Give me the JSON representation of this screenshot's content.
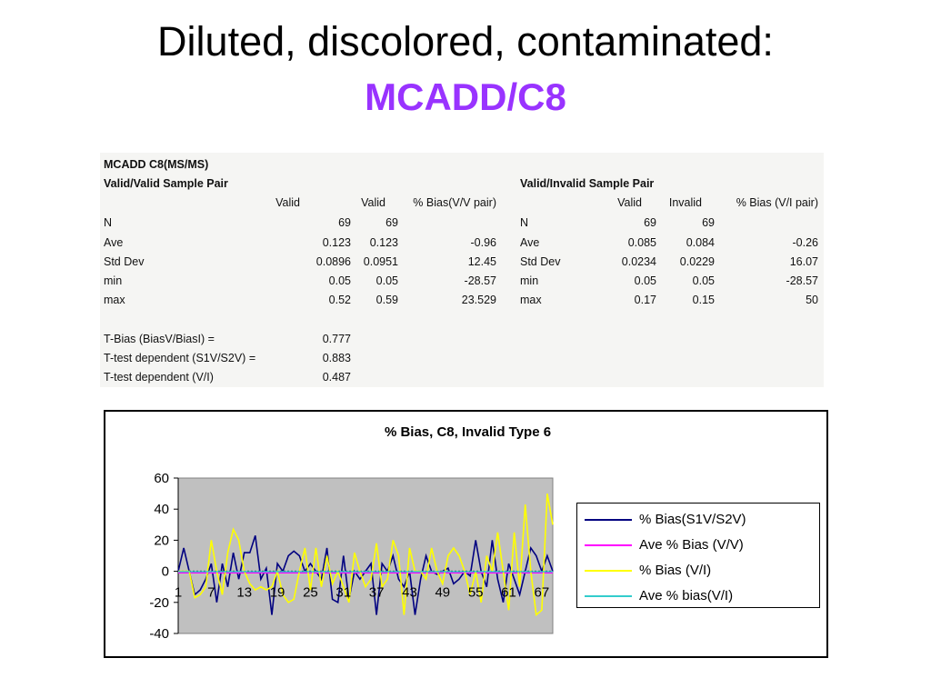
{
  "slide": {
    "title": "Diluted, discolored, contaminated:",
    "subtitle": "MCADD/C8"
  },
  "stats": {
    "heading1": "MCADD C8(MS/MS)",
    "heading2": "Valid/Valid Sample Pair",
    "vv": {
      "headers": [
        "Valid",
        "Valid",
        "% Bias(V/V pair)"
      ],
      "rows": [
        {
          "label": "N",
          "a": "69",
          "b": "69",
          "c": ""
        },
        {
          "label": "Ave",
          "a": "0.123",
          "b": "0.123",
          "c": "-0.96"
        },
        {
          "label": "Std Dev",
          "a": "0.0896",
          "b": "0.0951",
          "c": "12.45"
        },
        {
          "label": "min",
          "a": "0.05",
          "b": "0.05",
          "c": "-28.57"
        },
        {
          "label": "max",
          "a": "0.52",
          "b": "0.59",
          "c": "23.529"
        }
      ]
    },
    "tests": [
      {
        "label": "T-Bias (BiasV/BiasI) =",
        "value": "0.777"
      },
      {
        "label": "T-test dependent (S1V/S2V) =",
        "value": "0.883"
      },
      {
        "label": "T-test dependent (V/I)",
        "value": "0.487"
      }
    ],
    "vi": {
      "heading": "Valid/Invalid Sample Pair",
      "headers": [
        "Valid",
        "Invalid",
        "% Bias (V/I pair)"
      ],
      "rows": [
        {
          "label": "N",
          "a": "69",
          "b": "69",
          "c": ""
        },
        {
          "label": "Ave",
          "a": "0.085",
          "b": "0.084",
          "c": "-0.26"
        },
        {
          "label": "Std Dev",
          "a": "0.0234",
          "b": "0.0229",
          "c": "16.07"
        },
        {
          "label": "min",
          "a": "0.05",
          "b": "0.05",
          "c": "-28.57"
        },
        {
          "label": "max",
          "a": "0.17",
          "b": "0.15",
          "c": "50"
        }
      ]
    }
  },
  "chart_data": {
    "type": "line",
    "title": "% Bias, C8, Invalid Type 6",
    "xlabel": "",
    "ylabel": "",
    "ylim": [
      -40,
      60
    ],
    "yticks": [
      -40,
      -20,
      0,
      20,
      40,
      60
    ],
    "xticks": [
      1,
      7,
      13,
      19,
      25,
      31,
      37,
      43,
      49,
      55,
      61,
      67
    ],
    "x": [
      1,
      2,
      3,
      4,
      5,
      6,
      7,
      8,
      9,
      10,
      11,
      12,
      13,
      14,
      15,
      16,
      17,
      18,
      19,
      20,
      21,
      22,
      23,
      24,
      25,
      26,
      27,
      28,
      29,
      30,
      31,
      32,
      33,
      34,
      35,
      36,
      37,
      38,
      39,
      40,
      41,
      42,
      43,
      44,
      45,
      46,
      47,
      48,
      49,
      50,
      51,
      52,
      53,
      54,
      55,
      56,
      57,
      58,
      59,
      60,
      61,
      62,
      63,
      64,
      65,
      66,
      67,
      68,
      69
    ],
    "grid": false,
    "plot_background": "#c0c0c0",
    "legend_position": "right",
    "series": [
      {
        "name": "% Bias(S1V/S2V)",
        "color": "#000080",
        "values": [
          0,
          15,
          0,
          -15,
          -12,
          -5,
          5,
          -20,
          5,
          -10,
          12,
          -5,
          12,
          12,
          23,
          -5,
          2,
          -28,
          5,
          0,
          10,
          13,
          10,
          0,
          5,
          0,
          -5,
          15,
          -18,
          -20,
          10,
          -18,
          0,
          -5,
          0,
          5,
          -28,
          5,
          0,
          10,
          -5,
          -10,
          0,
          -28,
          -5,
          10,
          0,
          -2,
          0,
          2,
          -8,
          -5,
          0,
          -3,
          20,
          0,
          -10,
          20,
          -5,
          -20,
          5,
          -5,
          -15,
          0,
          15,
          10,
          0,
          10,
          0
        ]
      },
      {
        "name": "Ave % Bias (V/V)",
        "color": "#ff00ff",
        "values": [
          -0.96,
          -0.96,
          -0.96,
          -0.96,
          -0.96,
          -0.96,
          -0.96,
          -0.96,
          -0.96,
          -0.96,
          -0.96,
          -0.96,
          -0.96,
          -0.96,
          -0.96,
          -0.96,
          -0.96,
          -0.96,
          -0.96,
          -0.96,
          -0.96,
          -0.96,
          -0.96,
          -0.96,
          -0.96,
          -0.96,
          -0.96,
          -0.96,
          -0.96,
          -0.96,
          -0.96,
          -0.96,
          -0.96,
          -0.96,
          -0.96,
          -0.96,
          -0.96,
          -0.96,
          -0.96,
          -0.96,
          -0.96,
          -0.96,
          -0.96,
          -0.96,
          -0.96,
          -0.96,
          -0.96,
          -0.96,
          -0.96,
          -0.96,
          -0.96,
          -0.96,
          -0.96,
          -0.96,
          -0.96,
          -0.96,
          -0.96,
          -0.96,
          -0.96,
          -0.96,
          -0.96,
          -0.96,
          -0.96,
          -0.96,
          -0.96,
          -0.96,
          -0.96,
          -0.96,
          -0.96
        ]
      },
      {
        "name": "% Bias (V/I)",
        "color": "#ffff00",
        "values": [
          0,
          0,
          0,
          -17,
          -15,
          -10,
          20,
          0,
          -15,
          12,
          27,
          20,
          0,
          -8,
          -12,
          -10,
          -12,
          -10,
          0,
          -15,
          -20,
          -18,
          0,
          15,
          -12,
          15,
          -10,
          10,
          -8,
          0,
          -10,
          -20,
          12,
          0,
          -10,
          -5,
          18,
          -10,
          -5,
          20,
          10,
          -28,
          15,
          0,
          0,
          -5,
          15,
          0,
          -8,
          10,
          15,
          10,
          0,
          -15,
          0,
          -20,
          10,
          0,
          25,
          0,
          -25,
          25,
          -10,
          43,
          0,
          -28,
          -25,
          50,
          30
        ]
      },
      {
        "name": "Ave % bias(V/I)",
        "color": "#33cccc",
        "values": [
          -0.26,
          -0.26,
          -0.26,
          -0.26,
          -0.26,
          -0.26,
          -0.26,
          -0.26,
          -0.26,
          -0.26,
          -0.26,
          -0.26,
          -0.26,
          -0.26,
          -0.26,
          -0.26,
          -0.26,
          -0.26,
          -0.26,
          -0.26,
          -0.26,
          -0.26,
          -0.26,
          -0.26,
          -0.26,
          -0.26,
          -0.26,
          -0.26,
          -0.26,
          -0.26,
          -0.26,
          -0.26,
          -0.26,
          -0.26,
          -0.26,
          -0.26,
          -0.26,
          -0.26,
          -0.26,
          -0.26,
          -0.26,
          -0.26,
          -0.26,
          -0.26,
          -0.26,
          -0.26,
          -0.26,
          -0.26,
          -0.26,
          -0.26,
          -0.26,
          -0.26,
          -0.26,
          -0.26,
          -0.26,
          -0.26,
          -0.26,
          -0.26,
          -0.26,
          -0.26,
          -0.26,
          -0.26,
          -0.26,
          -0.26,
          -0.26,
          -0.26,
          -0.26,
          -0.26,
          -0.26
        ]
      }
    ]
  }
}
